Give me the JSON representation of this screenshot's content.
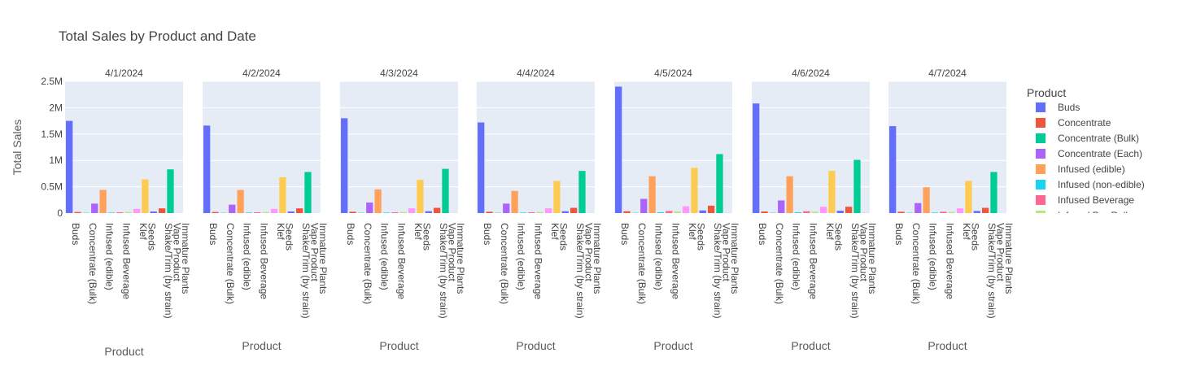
{
  "chart_data": {
    "type": "bar",
    "title": "Total Sales by Product and Date",
    "ylabel": "Total Sales",
    "xlabel": "Product",
    "ylim": [
      0,
      2500000
    ],
    "yticks": [
      0,
      500000,
      1000000,
      1500000,
      2000000,
      2500000
    ],
    "ytick_labels": [
      "0",
      "0.5M",
      "1M",
      "1.5M",
      "2M",
      "2.5M"
    ],
    "grid": true,
    "legend_placement": "right",
    "legend_title": "Product",
    "categories": [
      "Buds",
      "Concentrate",
      "Concentrate (Bulk)",
      "Concentrate (Each)",
      "Infused (edible)",
      "Infused (non-edible)",
      "Infused Beverage",
      "Infused Pre-Roll",
      "Klef",
      "Seeds",
      "Shake/Trim",
      "Shake/Trim (by strain)",
      "Vape Product",
      "Immature Plants"
    ],
    "tick_labels": [
      "Buds",
      "Concentrate (Bulk)",
      "Infused (edible)",
      "Infused Beverage",
      "Klef",
      "Seeds",
      "Shake/Trim (by strain)",
      "Vape Product",
      "Immature Plants"
    ],
    "legend_entries": [
      "Buds",
      "Concentrate",
      "Concentrate (Bulk)",
      "Concentrate (Each)",
      "Infused (edible)",
      "Infused (non-edible)",
      "Infused Beverage",
      "Infused Pre-Roll"
    ],
    "colors": [
      "#636efa",
      "#EF553B",
      "#00cc96",
      "#ab63fa",
      "#FFA15A",
      "#19d3f3",
      "#FF6692",
      "#B6E880",
      "#FF97FF",
      "#FECB52",
      "#636efa",
      "#EF553B",
      "#00cc96",
      "#ab63fa"
    ],
    "facets": [
      {
        "date": "4/1/2024",
        "values": [
          1750000,
          20000,
          5000,
          180000,
          440000,
          10000,
          15000,
          20000,
          80000,
          640000,
          30000,
          90000,
          830000,
          2000
        ]
      },
      {
        "date": "4/2/2024",
        "values": [
          1660000,
          20000,
          5000,
          160000,
          440000,
          10000,
          15000,
          20000,
          80000,
          680000,
          30000,
          90000,
          780000,
          2000
        ]
      },
      {
        "date": "4/3/2024",
        "values": [
          1800000,
          25000,
          5000,
          200000,
          450000,
          10000,
          15000,
          20000,
          90000,
          630000,
          35000,
          100000,
          840000,
          2000
        ]
      },
      {
        "date": "4/4/2024",
        "values": [
          1720000,
          25000,
          5000,
          180000,
          420000,
          10000,
          15000,
          20000,
          90000,
          610000,
          35000,
          100000,
          800000,
          2000
        ]
      },
      {
        "date": "4/5/2024",
        "values": [
          2400000,
          35000,
          5000,
          270000,
          700000,
          15000,
          40000,
          30000,
          130000,
          860000,
          50000,
          140000,
          1120000,
          3000
        ]
      },
      {
        "date": "4/6/2024",
        "values": [
          2080000,
          30000,
          5000,
          240000,
          700000,
          15000,
          35000,
          25000,
          120000,
          800000,
          45000,
          120000,
          1010000,
          3000
        ]
      },
      {
        "date": "4/7/2024",
        "values": [
          1650000,
          25000,
          5000,
          190000,
          490000,
          10000,
          25000,
          20000,
          90000,
          610000,
          40000,
          100000,
          780000,
          2000
        ]
      }
    ]
  }
}
